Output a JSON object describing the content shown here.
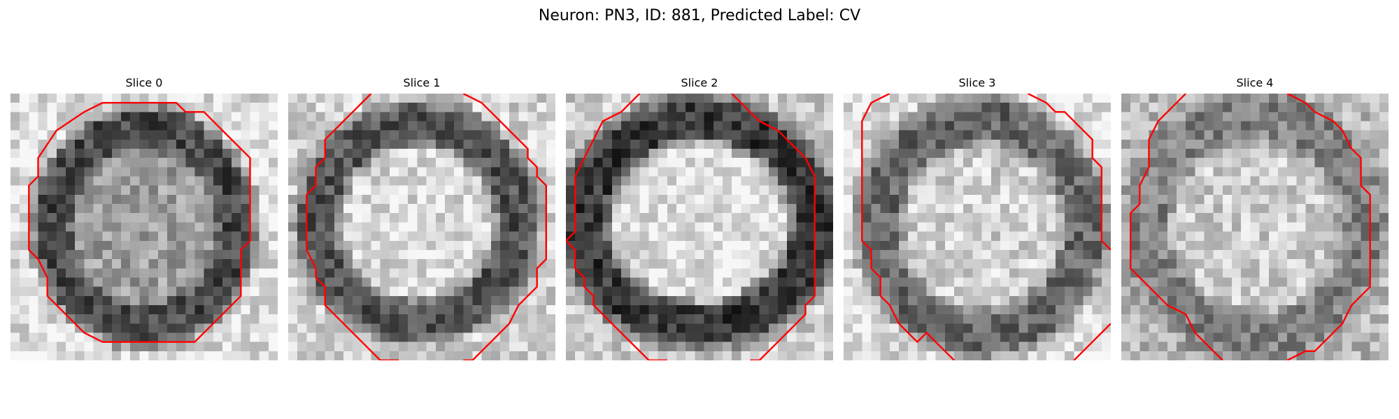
{
  "figure": {
    "title": "Neuron: PN3, ID: 881, Predicted Label: CV"
  },
  "colors": {
    "contour": "#ff0000",
    "background": "#ffffff"
  },
  "colormap": "gray",
  "panels": [
    {
      "label": "Slice 0"
    },
    {
      "label": "Slice 1"
    },
    {
      "label": "Slice 2"
    },
    {
      "label": "Slice 3"
    },
    {
      "label": "Slice 4"
    }
  ]
}
